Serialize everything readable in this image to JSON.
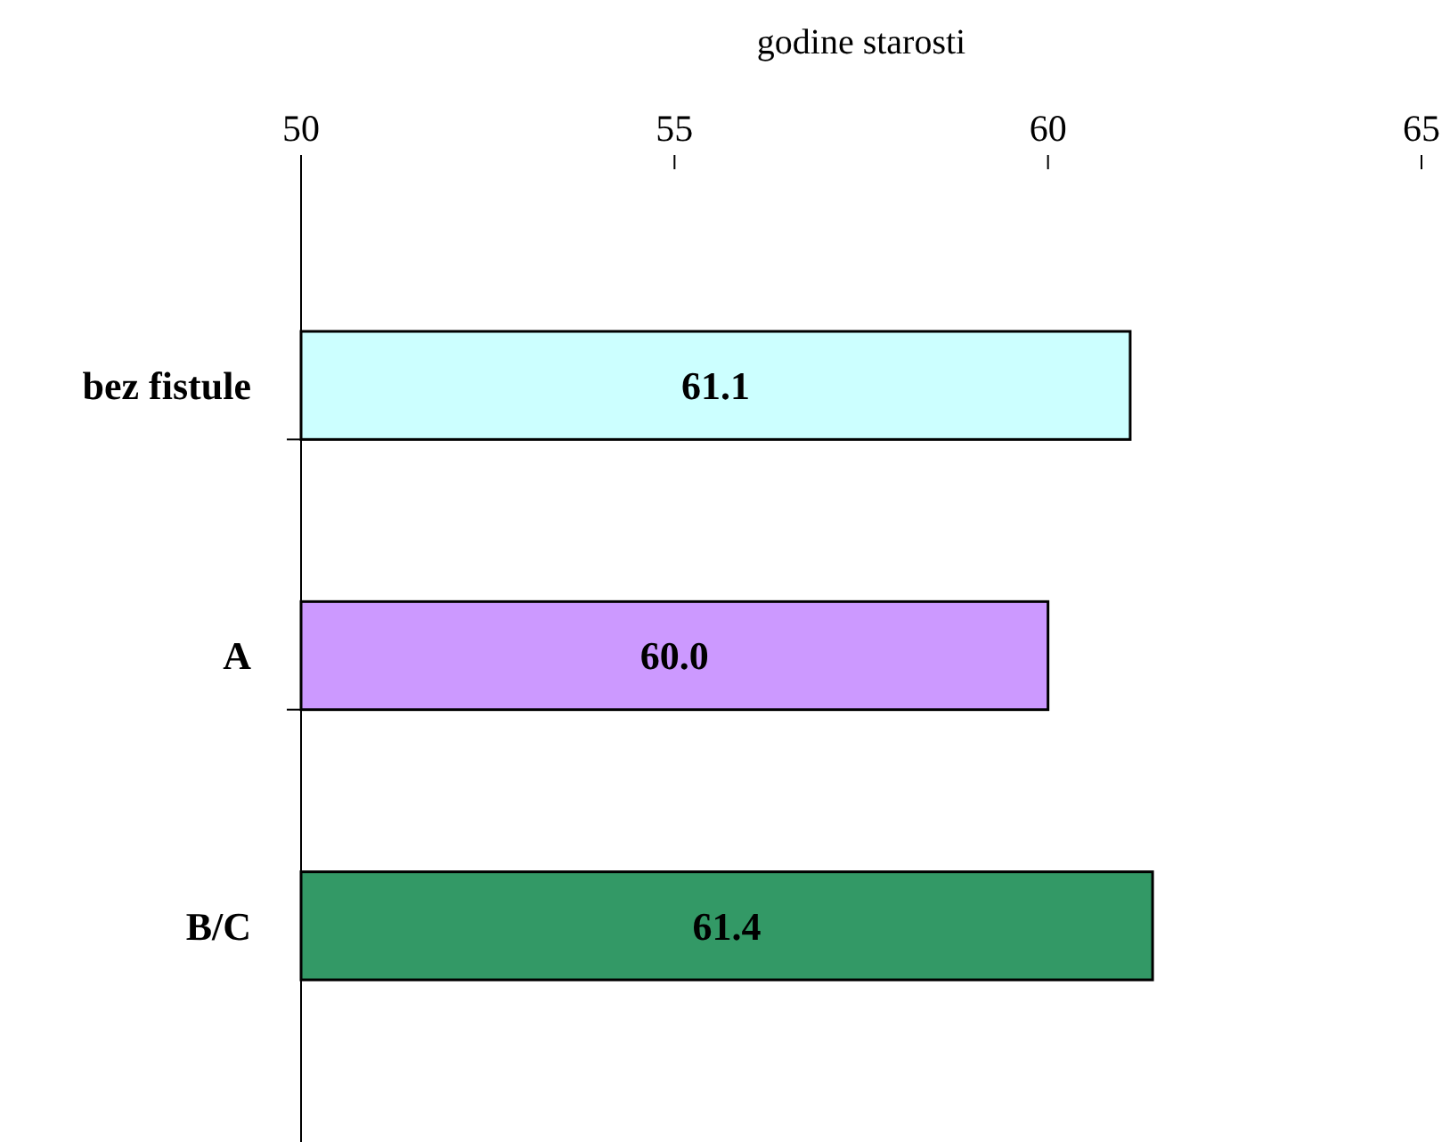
{
  "chart_data": {
    "type": "bar",
    "orientation": "horizontal",
    "xlabel": "godine starosti",
    "categories": [
      "bez fistule",
      "A",
      "B/C"
    ],
    "values": [
      61.1,
      60.0,
      61.4
    ],
    "colors": [
      "#ccffff",
      "#cc99ff",
      "#339966"
    ],
    "value_labels": [
      "61.1",
      "60.0",
      "61.4"
    ],
    "xlim": [
      50,
      65
    ],
    "xticks": [
      50,
      55,
      60,
      65
    ],
    "grid": false
  }
}
